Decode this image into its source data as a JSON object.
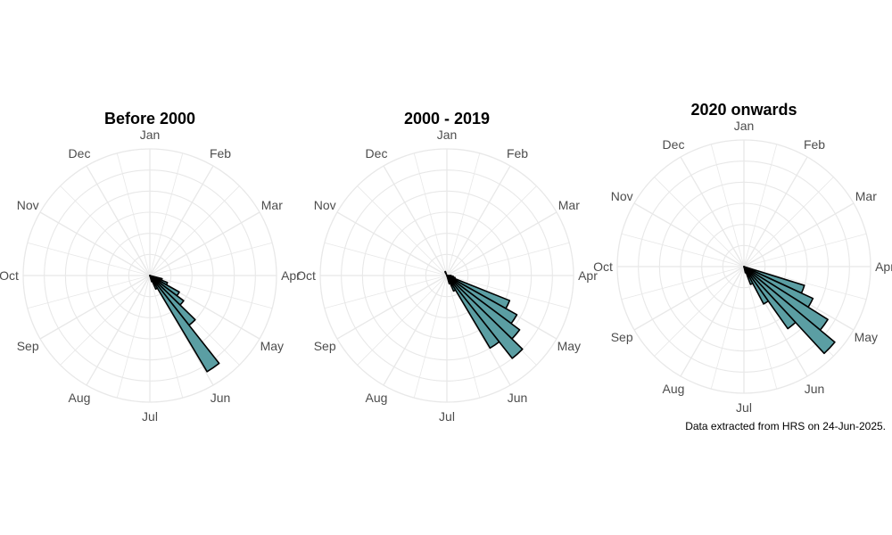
{
  "caption": "Data extracted from HRS on 24-Jun-2025.",
  "colors": {
    "bar_fill": "#5b9ea3",
    "bar_stroke": "#000000",
    "grid": "#e8e8e8",
    "label": "#4d4d4d"
  },
  "chart_data": [
    {
      "type": "bar",
      "projection": "polar",
      "title": "Before 2000",
      "categories": [
        "Jan",
        "Feb",
        "Mar",
        "Apr",
        "May",
        "Jun",
        "Jul",
        "Aug",
        "Sep",
        "Oct",
        "Nov",
        "Dec"
      ],
      "labels": [
        "Jan",
        "Feb",
        "Mar",
        "Apr",
        "May",
        "Jun",
        "Jul",
        "Aug",
        "Sep",
        "Oct",
        "Nov",
        "Dec"
      ],
      "tick_positions": [
        0,
        1,
        2,
        3,
        4,
        5,
        6,
        7,
        8,
        9,
        10,
        11
      ],
      "bins": [
        {
          "position": 3.6,
          "value": 0.6
        },
        {
          "position": 3.85,
          "value": 0.9
        },
        {
          "position": 4.1,
          "value": 1.6
        },
        {
          "position": 4.35,
          "value": 2.0
        },
        {
          "position": 4.6,
          "value": 3.0
        },
        {
          "position": 4.85,
          "value": 5.3
        },
        {
          "position": 5.1,
          "value": 0.7
        },
        {
          "position": 5.35,
          "value": 0.3
        }
      ],
      "rmax": 6,
      "grid": true
    },
    {
      "type": "bar",
      "projection": "polar",
      "title": "2000 - 2019",
      "categories": [
        "Jan",
        "Feb",
        "Mar",
        "Apr",
        "May",
        "Jun",
        "Jul",
        "Aug",
        "Sep",
        "Oct",
        "Nov",
        "Dec"
      ],
      "labels": [
        "Jan",
        "Feb",
        "Mar",
        "Apr",
        "May",
        "Jun",
        "Jul",
        "Aug",
        "Sep",
        "Oct",
        "Nov",
        "Dec"
      ],
      "tick_positions": [
        0,
        1,
        2,
        3,
        4,
        5,
        6,
        7,
        8,
        9,
        10,
        11
      ],
      "bins": [
        {
          "position": 3.1,
          "value": 0.2
        },
        {
          "position": 3.35,
          "value": 0.3
        },
        {
          "position": 3.6,
          "value": 0.4
        },
        {
          "position": 3.85,
          "value": 3.2
        },
        {
          "position": 4.1,
          "value": 3.8
        },
        {
          "position": 4.35,
          "value": 4.3
        },
        {
          "position": 4.6,
          "value": 5.0
        },
        {
          "position": 4.85,
          "value": 4.0
        },
        {
          "position": 5.1,
          "value": 0.8
        },
        {
          "position": 5.35,
          "value": 0.4
        },
        {
          "position": 11.2,
          "value": 0.2
        }
      ],
      "rmax": 6,
      "grid": true
    },
    {
      "type": "bar",
      "projection": "polar",
      "title": "2020 onwards",
      "categories": [
        "Jan",
        "Feb",
        "Mar",
        "Apr",
        "May",
        "Jun",
        "Jul",
        "Aug",
        "Sep",
        "Oct",
        "Nov",
        "Dec"
      ],
      "labels": [
        "Jan",
        "Feb",
        "Mar",
        "Apr",
        "May",
        "Jun",
        "Jul",
        "Aug",
        "Sep",
        "Oct",
        "Nov",
        "Dec"
      ],
      "tick_positions": [
        0,
        1,
        2,
        3,
        4,
        5,
        6,
        7,
        8,
        9,
        10,
        11
      ],
      "bins": [
        {
          "position": 3.7,
          "value": 3.0
        },
        {
          "position": 3.95,
          "value": 3.6
        },
        {
          "position": 4.2,
          "value": 4.7
        },
        {
          "position": 4.45,
          "value": 5.6
        },
        {
          "position": 4.7,
          "value": 3.6
        },
        {
          "position": 4.95,
          "value": 2.0
        },
        {
          "position": 5.2,
          "value": 0.9
        },
        {
          "position": 5.45,
          "value": 0.3
        }
      ],
      "rmax": 6,
      "grid": true
    }
  ]
}
